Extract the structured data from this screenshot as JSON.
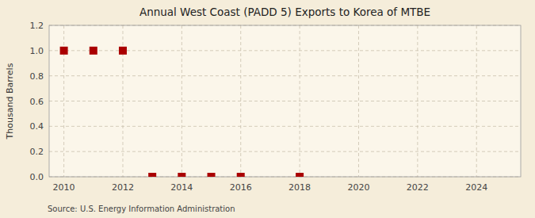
{
  "chart_data": {
    "type": "scatter",
    "title": "Annual West Coast (PADD 5) Exports to Korea of MTBE",
    "ylabel": "Thousand Barrels",
    "annotation": "Source: U.S. Energy Information Administration",
    "x": [
      2010,
      2011,
      2012,
      2013,
      2014,
      2015,
      2016,
      2018
    ],
    "values": [
      1.0,
      1.0,
      1.0,
      0.0,
      0.0,
      0.0,
      0.0,
      0.0
    ],
    "color": "#aa0000",
    "marker": "square",
    "xlim": [
      2009.5,
      2025.5
    ],
    "ylim": [
      0.0,
      1.2
    ],
    "xticks": [
      2010,
      2012,
      2014,
      2016,
      2018,
      2020,
      2022,
      2024
    ],
    "yticks": [
      {
        "value": 0.0,
        "label": "0.0"
      },
      0.2,
      0.4,
      0.6,
      0.8,
      {
        "value": 1.0,
        "label": "1.0"
      },
      1.2
    ],
    "grid": true
  }
}
